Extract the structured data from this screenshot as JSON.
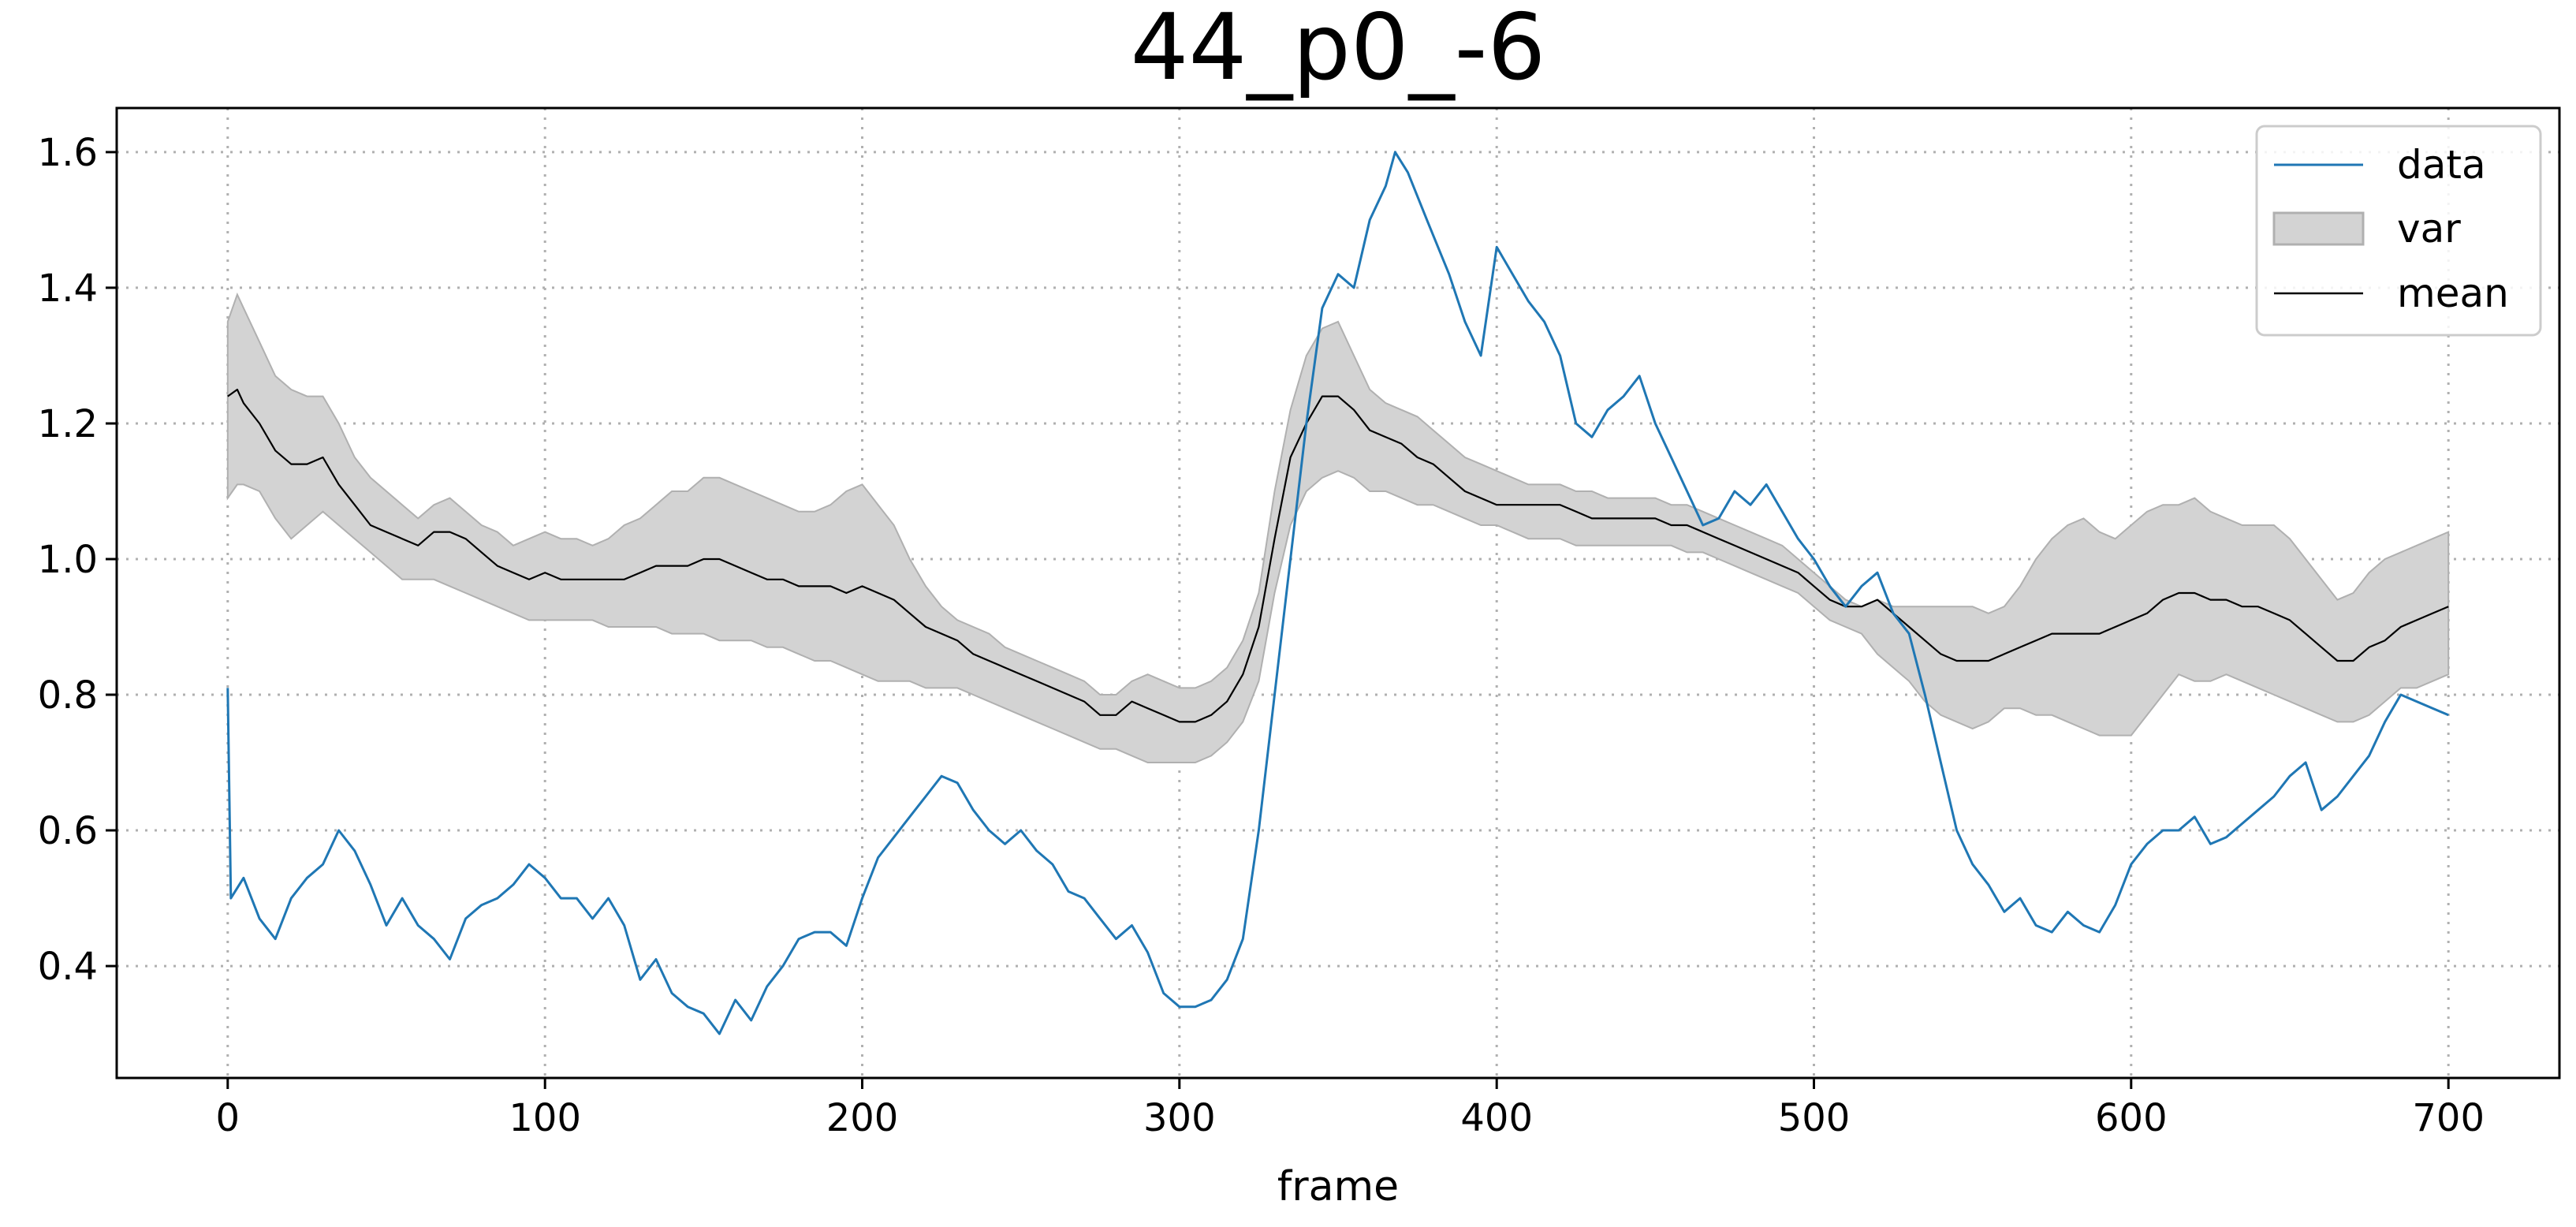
{
  "chart_data": {
    "type": "line",
    "title": "44_p0_-6",
    "xlabel": "frame",
    "ylabel": "",
    "xlim": [
      -35,
      735
    ],
    "ylim": [
      0.235,
      1.665
    ],
    "xticks": [
      0,
      100,
      200,
      300,
      400,
      500,
      600,
      700
    ],
    "yticks": [
      0.4,
      0.6,
      0.8,
      1.0,
      1.2,
      1.4,
      1.6
    ],
    "xtick_labels": [
      "0",
      "100",
      "200",
      "300",
      "400",
      "500",
      "600",
      "700"
    ],
    "ytick_labels": [
      "0.4",
      "0.6",
      "0.8",
      "1.0",
      "1.2",
      "1.4",
      "1.6"
    ],
    "grid": true,
    "legend_position": "top-right",
    "colors": {
      "data": "#1f77b4",
      "mean": "#000000",
      "var_fill": "#d3d3d3",
      "var_edge": "#b0b0b0"
    },
    "series": [
      {
        "name": "data",
        "kind": "line",
        "x": [
          0,
          1,
          5,
          10,
          15,
          20,
          25,
          30,
          35,
          40,
          45,
          50,
          55,
          60,
          65,
          70,
          75,
          80,
          85,
          90,
          95,
          100,
          105,
          110,
          115,
          120,
          125,
          130,
          135,
          140,
          145,
          150,
          155,
          160,
          165,
          170,
          175,
          180,
          185,
          190,
          195,
          200,
          205,
          210,
          215,
          220,
          225,
          230,
          235,
          240,
          245,
          250,
          255,
          260,
          265,
          270,
          275,
          280,
          285,
          290,
          295,
          300,
          305,
          310,
          315,
          320,
          325,
          330,
          335,
          340,
          345,
          350,
          355,
          360,
          365,
          368,
          372,
          378,
          385,
          390,
          395,
          400,
          405,
          410,
          415,
          420,
          425,
          430,
          435,
          440,
          445,
          450,
          455,
          460,
          465,
          470,
          475,
          480,
          485,
          490,
          495,
          500,
          505,
          510,
          515,
          520,
          525,
          530,
          535,
          540,
          545,
          550,
          555,
          560,
          565,
          570,
          575,
          580,
          585,
          590,
          595,
          600,
          605,
          610,
          615,
          620,
          625,
          630,
          635,
          640,
          645,
          650,
          655,
          660,
          665,
          670,
          675,
          680,
          685,
          690,
          695,
          700
        ],
        "y": [
          0.81,
          0.5,
          0.53,
          0.47,
          0.44,
          0.5,
          0.53,
          0.55,
          0.6,
          0.57,
          0.52,
          0.46,
          0.5,
          0.46,
          0.44,
          0.41,
          0.47,
          0.49,
          0.5,
          0.52,
          0.55,
          0.53,
          0.5,
          0.5,
          0.47,
          0.5,
          0.46,
          0.38,
          0.41,
          0.36,
          0.34,
          0.33,
          0.3,
          0.35,
          0.32,
          0.37,
          0.4,
          0.44,
          0.45,
          0.45,
          0.43,
          0.5,
          0.56,
          0.59,
          0.62,
          0.65,
          0.68,
          0.67,
          0.63,
          0.6,
          0.58,
          0.6,
          0.57,
          0.55,
          0.51,
          0.5,
          0.47,
          0.44,
          0.46,
          0.42,
          0.36,
          0.34,
          0.34,
          0.35,
          0.38,
          0.44,
          0.6,
          0.8,
          1.0,
          1.2,
          1.37,
          1.42,
          1.4,
          1.5,
          1.55,
          1.6,
          1.57,
          1.5,
          1.42,
          1.35,
          1.3,
          1.46,
          1.42,
          1.38,
          1.35,
          1.3,
          1.2,
          1.18,
          1.22,
          1.24,
          1.27,
          1.2,
          1.15,
          1.1,
          1.05,
          1.06,
          1.1,
          1.08,
          1.11,
          1.07,
          1.03,
          1.0,
          0.96,
          0.93,
          0.96,
          0.98,
          0.92,
          0.89,
          0.8,
          0.7,
          0.6,
          0.55,
          0.52,
          0.48,
          0.5,
          0.46,
          0.45,
          0.48,
          0.46,
          0.45,
          0.49,
          0.55,
          0.58,
          0.6,
          0.6,
          0.62,
          0.58,
          0.59,
          0.61,
          0.63,
          0.65,
          0.68,
          0.7,
          0.63,
          0.65,
          0.68,
          0.71,
          0.76,
          0.8,
          0.79,
          0.78,
          0.77
        ]
      },
      {
        "name": "var",
        "kind": "band",
        "x": [
          0,
          3,
          5,
          10,
          15,
          20,
          25,
          30,
          35,
          40,
          45,
          50,
          55,
          60,
          65,
          70,
          75,
          80,
          85,
          90,
          95,
          100,
          105,
          110,
          115,
          120,
          125,
          130,
          135,
          140,
          145,
          150,
          155,
          160,
          165,
          170,
          175,
          180,
          185,
          190,
          195,
          200,
          205,
          210,
          215,
          220,
          225,
          230,
          235,
          240,
          245,
          250,
          255,
          260,
          265,
          270,
          275,
          280,
          285,
          290,
          295,
          300,
          305,
          310,
          315,
          320,
          325,
          330,
          335,
          340,
          345,
          350,
          355,
          360,
          365,
          370,
          375,
          380,
          385,
          390,
          395,
          400,
          405,
          410,
          415,
          420,
          425,
          430,
          435,
          440,
          445,
          450,
          455,
          460,
          465,
          470,
          475,
          480,
          485,
          490,
          495,
          500,
          505,
          510,
          515,
          520,
          525,
          530,
          535,
          540,
          545,
          550,
          555,
          560,
          565,
          570,
          575,
          580,
          585,
          590,
          595,
          600,
          605,
          610,
          615,
          620,
          625,
          630,
          635,
          640,
          645,
          650,
          655,
          660,
          665,
          670,
          675,
          680,
          685,
          690,
          695,
          700
        ],
        "upper": [
          1.35,
          1.39,
          1.37,
          1.32,
          1.27,
          1.25,
          1.24,
          1.24,
          1.2,
          1.15,
          1.12,
          1.1,
          1.08,
          1.06,
          1.08,
          1.09,
          1.07,
          1.05,
          1.04,
          1.02,
          1.03,
          1.04,
          1.03,
          1.03,
          1.02,
          1.03,
          1.05,
          1.06,
          1.08,
          1.1,
          1.1,
          1.12,
          1.12,
          1.11,
          1.1,
          1.09,
          1.08,
          1.07,
          1.07,
          1.08,
          1.1,
          1.11,
          1.08,
          1.05,
          1.0,
          0.96,
          0.93,
          0.91,
          0.9,
          0.89,
          0.87,
          0.86,
          0.85,
          0.84,
          0.83,
          0.82,
          0.8,
          0.8,
          0.82,
          0.83,
          0.82,
          0.81,
          0.81,
          0.82,
          0.84,
          0.88,
          0.95,
          1.1,
          1.22,
          1.3,
          1.34,
          1.35,
          1.3,
          1.25,
          1.23,
          1.22,
          1.21,
          1.19,
          1.17,
          1.15,
          1.14,
          1.13,
          1.12,
          1.11,
          1.11,
          1.11,
          1.1,
          1.1,
          1.09,
          1.09,
          1.09,
          1.09,
          1.08,
          1.08,
          1.07,
          1.06,
          1.05,
          1.04,
          1.03,
          1.02,
          1.0,
          0.98,
          0.96,
          0.94,
          0.93,
          0.94,
          0.93,
          0.93,
          0.93,
          0.93,
          0.93,
          0.93,
          0.92,
          0.93,
          0.96,
          1.0,
          1.03,
          1.05,
          1.06,
          1.04,
          1.03,
          1.05,
          1.07,
          1.08,
          1.08,
          1.09,
          1.07,
          1.06,
          1.05,
          1.05,
          1.05,
          1.03,
          1.0,
          0.97,
          0.94,
          0.95,
          0.98,
          1.0,
          1.01,
          1.02,
          1.03,
          1.04
        ],
        "lower": [
          1.09,
          1.11,
          1.11,
          1.1,
          1.06,
          1.03,
          1.05,
          1.07,
          1.05,
          1.03,
          1.01,
          0.99,
          0.97,
          0.97,
          0.97,
          0.96,
          0.95,
          0.94,
          0.93,
          0.92,
          0.91,
          0.91,
          0.91,
          0.91,
          0.91,
          0.9,
          0.9,
          0.9,
          0.9,
          0.89,
          0.89,
          0.89,
          0.88,
          0.88,
          0.88,
          0.87,
          0.87,
          0.86,
          0.85,
          0.85,
          0.84,
          0.83,
          0.82,
          0.82,
          0.82,
          0.81,
          0.81,
          0.81,
          0.8,
          0.79,
          0.78,
          0.77,
          0.76,
          0.75,
          0.74,
          0.73,
          0.72,
          0.72,
          0.71,
          0.7,
          0.7,
          0.7,
          0.7,
          0.71,
          0.73,
          0.76,
          0.82,
          0.95,
          1.05,
          1.1,
          1.12,
          1.13,
          1.12,
          1.1,
          1.1,
          1.09,
          1.08,
          1.08,
          1.07,
          1.06,
          1.05,
          1.05,
          1.04,
          1.03,
          1.03,
          1.03,
          1.02,
          1.02,
          1.02,
          1.02,
          1.02,
          1.02,
          1.02,
          1.01,
          1.01,
          1.0,
          0.99,
          0.98,
          0.97,
          0.96,
          0.95,
          0.93,
          0.91,
          0.9,
          0.89,
          0.86,
          0.84,
          0.82,
          0.79,
          0.77,
          0.76,
          0.75,
          0.76,
          0.78,
          0.78,
          0.77,
          0.77,
          0.76,
          0.75,
          0.74,
          0.74,
          0.74,
          0.77,
          0.8,
          0.83,
          0.82,
          0.82,
          0.83,
          0.82,
          0.81,
          0.8,
          0.79,
          0.78,
          0.77,
          0.76,
          0.76,
          0.77,
          0.79,
          0.81,
          0.81,
          0.82,
          0.83
        ]
      },
      {
        "name": "mean",
        "kind": "line",
        "x": [
          0,
          3,
          5,
          10,
          15,
          20,
          25,
          30,
          35,
          40,
          45,
          50,
          55,
          60,
          65,
          70,
          75,
          80,
          85,
          90,
          95,
          100,
          105,
          110,
          115,
          120,
          125,
          130,
          135,
          140,
          145,
          150,
          155,
          160,
          165,
          170,
          175,
          180,
          185,
          190,
          195,
          200,
          205,
          210,
          215,
          220,
          225,
          230,
          235,
          240,
          245,
          250,
          255,
          260,
          265,
          270,
          275,
          280,
          285,
          290,
          295,
          300,
          305,
          310,
          315,
          320,
          325,
          330,
          335,
          340,
          345,
          350,
          355,
          360,
          365,
          370,
          375,
          380,
          385,
          390,
          395,
          400,
          405,
          410,
          415,
          420,
          425,
          430,
          435,
          440,
          445,
          450,
          455,
          460,
          465,
          470,
          475,
          480,
          485,
          490,
          495,
          500,
          505,
          510,
          515,
          520,
          525,
          530,
          535,
          540,
          545,
          550,
          555,
          560,
          565,
          570,
          575,
          580,
          585,
          590,
          595,
          600,
          605,
          610,
          615,
          620,
          625,
          630,
          635,
          640,
          645,
          650,
          655,
          660,
          665,
          670,
          675,
          680,
          685,
          690,
          695,
          700
        ],
        "y": [
          1.24,
          1.25,
          1.23,
          1.2,
          1.16,
          1.14,
          1.14,
          1.15,
          1.11,
          1.08,
          1.05,
          1.04,
          1.03,
          1.02,
          1.04,
          1.04,
          1.03,
          1.01,
          0.99,
          0.98,
          0.97,
          0.98,
          0.97,
          0.97,
          0.97,
          0.97,
          0.97,
          0.98,
          0.99,
          0.99,
          0.99,
          1.0,
          1.0,
          0.99,
          0.98,
          0.97,
          0.97,
          0.96,
          0.96,
          0.96,
          0.95,
          0.96,
          0.95,
          0.94,
          0.92,
          0.9,
          0.89,
          0.88,
          0.86,
          0.85,
          0.84,
          0.83,
          0.82,
          0.81,
          0.8,
          0.79,
          0.77,
          0.77,
          0.79,
          0.78,
          0.77,
          0.76,
          0.76,
          0.77,
          0.79,
          0.83,
          0.9,
          1.03,
          1.15,
          1.2,
          1.24,
          1.24,
          1.22,
          1.19,
          1.18,
          1.17,
          1.15,
          1.14,
          1.12,
          1.1,
          1.09,
          1.08,
          1.08,
          1.08,
          1.08,
          1.08,
          1.07,
          1.06,
          1.06,
          1.06,
          1.06,
          1.06,
          1.05,
          1.05,
          1.04,
          1.03,
          1.02,
          1.01,
          1.0,
          0.99,
          0.98,
          0.96,
          0.94,
          0.93,
          0.93,
          0.94,
          0.92,
          0.9,
          0.88,
          0.86,
          0.85,
          0.85,
          0.85,
          0.86,
          0.87,
          0.88,
          0.89,
          0.89,
          0.89,
          0.89,
          0.9,
          0.91,
          0.92,
          0.94,
          0.95,
          0.95,
          0.94,
          0.94,
          0.93,
          0.93,
          0.92,
          0.91,
          0.89,
          0.87,
          0.85,
          0.85,
          0.87,
          0.88,
          0.9,
          0.91,
          0.92,
          0.93
        ]
      }
    ]
  }
}
